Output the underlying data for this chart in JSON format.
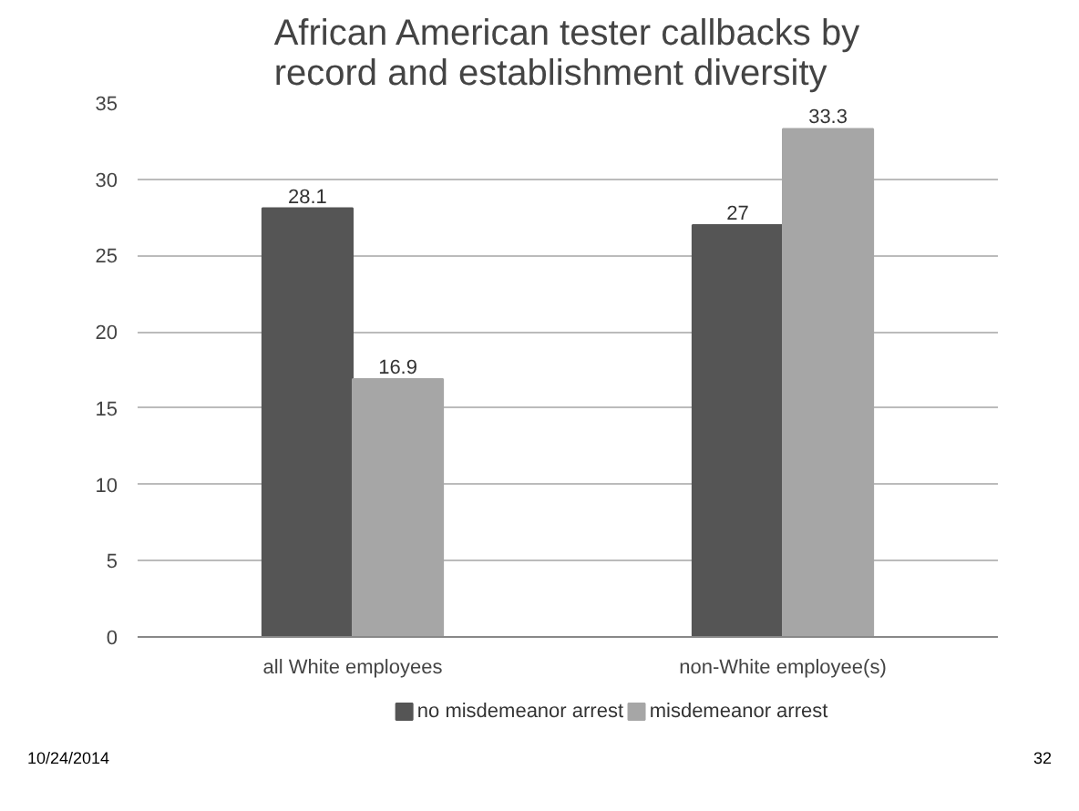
{
  "chart_data": {
    "type": "bar",
    "title": "African American tester callbacks by record and establishment diversity",
    "categories": [
      "all White employees",
      "non-White employee(s)"
    ],
    "series": [
      {
        "name": "no misdemeanor arrest",
        "color": "#555555",
        "values": [
          28.1,
          27
        ]
      },
      {
        "name": "misdemeanor arrest",
        "color": "#a6a6a6",
        "values": [
          16.9,
          33.3
        ]
      }
    ],
    "ylim": [
      0,
      35
    ],
    "yticks": [
      0,
      5,
      10,
      15,
      20,
      25,
      30,
      35
    ],
    "grid": "y",
    "legend": "bottom",
    "data_labels": true,
    "annotations": [
      "10/24/2014",
      "32"
    ]
  }
}
